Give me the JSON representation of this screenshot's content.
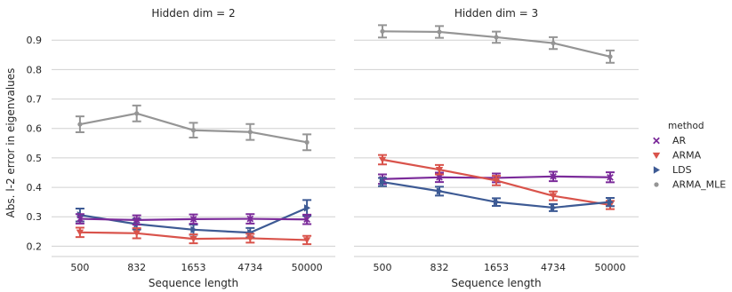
{
  "chart_data": {
    "type": "line",
    "ylabel": "Abs. l-2 error in eigenvalues",
    "xlabel": "Sequence length",
    "categories": [
      "500",
      "832",
      "1653",
      "4734",
      "50000"
    ],
    "ylim": [
      0.165,
      0.955
    ],
    "yticks": [
      0.2,
      0.3,
      0.4,
      0.5,
      0.6,
      0.7,
      0.8,
      0.9
    ],
    "grid": "horizontal",
    "legend": {
      "title": "method",
      "placement": "right",
      "entries": [
        {
          "name": "AR",
          "marker": "x",
          "color": "#7b2b9a"
        },
        {
          "name": "ARMA",
          "marker": "triangle-down",
          "color": "#d9534b"
        },
        {
          "name": "LDS",
          "marker": "triangle-right",
          "color": "#3d5a94"
        },
        {
          "name": "ARMA_MLE",
          "marker": "dot",
          "color": "#959595"
        }
      ]
    },
    "panels": [
      {
        "title": "Hidden dim = 2",
        "series": [
          {
            "name": "ARMA_MLE",
            "values": [
              0.614,
              0.651,
              0.594,
              0.588,
              0.553
            ],
            "err": [
              0.027,
              0.027,
              0.025,
              0.027,
              0.027
            ]
          },
          {
            "name": "LDS",
            "values": [
              0.306,
              0.275,
              0.256,
              0.246,
              0.33
            ],
            "err": [
              0.022,
              0.018,
              0.017,
              0.016,
              0.027
            ]
          },
          {
            "name": "AR",
            "values": [
              0.293,
              0.289,
              0.292,
              0.293,
              0.291
            ],
            "err": [
              0.016,
              0.016,
              0.016,
              0.016,
              0.016
            ]
          },
          {
            "name": "ARMA",
            "values": [
              0.247,
              0.244,
              0.225,
              0.227,
              0.221
            ],
            "err": [
              0.016,
              0.017,
              0.015,
              0.015,
              0.014
            ]
          }
        ]
      },
      {
        "title": "Hidden dim = 3",
        "series": [
          {
            "name": "ARMA_MLE",
            "values": [
              0.93,
              0.928,
              0.91,
              0.89,
              0.844
            ],
            "err": [
              0.021,
              0.02,
              0.019,
              0.02,
              0.021
            ]
          },
          {
            "name": "AR",
            "values": [
              0.428,
              0.434,
              0.432,
              0.437,
              0.434
            ],
            "err": [
              0.016,
              0.016,
              0.015,
              0.016,
              0.017
            ]
          },
          {
            "name": "ARMA",
            "values": [
              0.494,
              0.46,
              0.423,
              0.371,
              0.34
            ],
            "err": [
              0.016,
              0.016,
              0.016,
              0.015,
              0.014
            ]
          },
          {
            "name": "LDS",
            "values": [
              0.418,
              0.387,
              0.35,
              0.331,
              0.35
            ],
            "err": [
              0.014,
              0.015,
              0.013,
              0.012,
              0.014
            ]
          }
        ]
      }
    ]
  }
}
